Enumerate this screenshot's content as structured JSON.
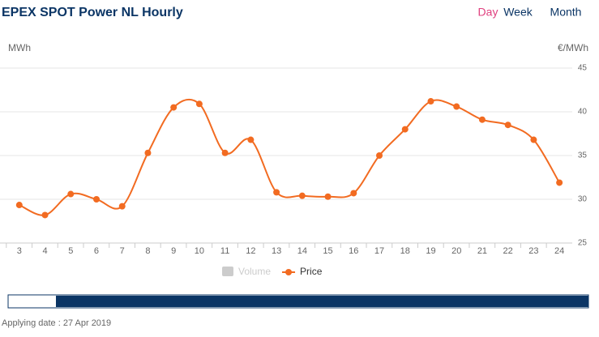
{
  "header": {
    "title": "EPEX SPOT Power NL Hourly",
    "tabs": [
      "Day",
      "Week",
      "Month"
    ],
    "active_tab": 0
  },
  "chart_data": {
    "type": "line",
    "left_axis_label": "MWh",
    "right_axis_label": "€/MWh",
    "x": [
      3,
      4,
      5,
      6,
      7,
      8,
      9,
      10,
      11,
      12,
      13,
      14,
      15,
      16,
      17,
      18,
      19,
      20,
      21,
      22,
      23,
      24
    ],
    "xlim": [
      2.25,
      24.5
    ],
    "xticks": [
      3,
      4,
      5,
      6,
      7,
      8,
      9,
      10,
      11,
      12,
      13,
      14,
      15,
      16,
      17,
      18,
      19,
      20,
      21,
      22,
      23,
      24
    ],
    "ylim": [
      25,
      45
    ],
    "yticks": [
      25,
      30,
      35,
      40,
      45
    ],
    "grid": true,
    "smooth": true,
    "series": [
      {
        "name": "Price",
        "color": "#f26b21",
        "values": [
          29.35,
          28.2,
          30.6,
          30.0,
          29.2,
          35.3,
          40.5,
          40.9,
          35.3,
          36.8,
          30.8,
          30.4,
          30.3,
          30.7,
          35.0,
          38.0,
          41.2,
          40.6,
          39.1,
          38.5,
          36.8,
          31.9
        ]
      }
    ],
    "legend_disabled": [
      {
        "name": "Volume",
        "color": "#cccccc"
      }
    ]
  },
  "footer": "Applying date : 27 Apr 2019"
}
